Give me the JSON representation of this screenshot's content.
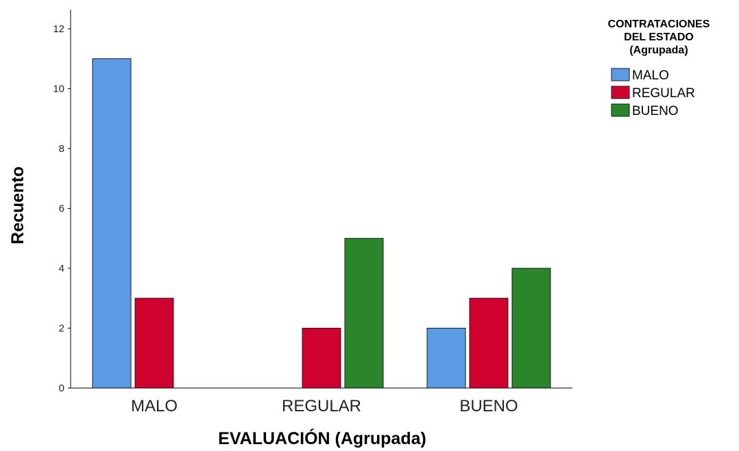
{
  "chart_data": {
    "type": "bar",
    "xlabel": "EVALUACIÓN  (Agrupada)",
    "ylabel": "Recuento",
    "ylim": [
      0,
      12
    ],
    "yticks": [
      0,
      2,
      4,
      6,
      8,
      10,
      12
    ],
    "categories": [
      "MALO",
      "REGULAR",
      "BUENO"
    ],
    "legend": {
      "title_lines": [
        "CONTRATACIONES",
        "DEL ESTADO",
        "(Agrupada)"
      ],
      "placement": "top-right"
    },
    "series": [
      {
        "name": "MALO",
        "color": "#5b9be5",
        "values": [
          11,
          0,
          2
        ]
      },
      {
        "name": "REGULAR",
        "color": "#d0002f",
        "values": [
          3,
          2,
          3
        ]
      },
      {
        "name": "BUENO",
        "color": "#2b852b",
        "values": [
          0,
          5,
          4
        ]
      }
    ],
    "grid": false
  }
}
